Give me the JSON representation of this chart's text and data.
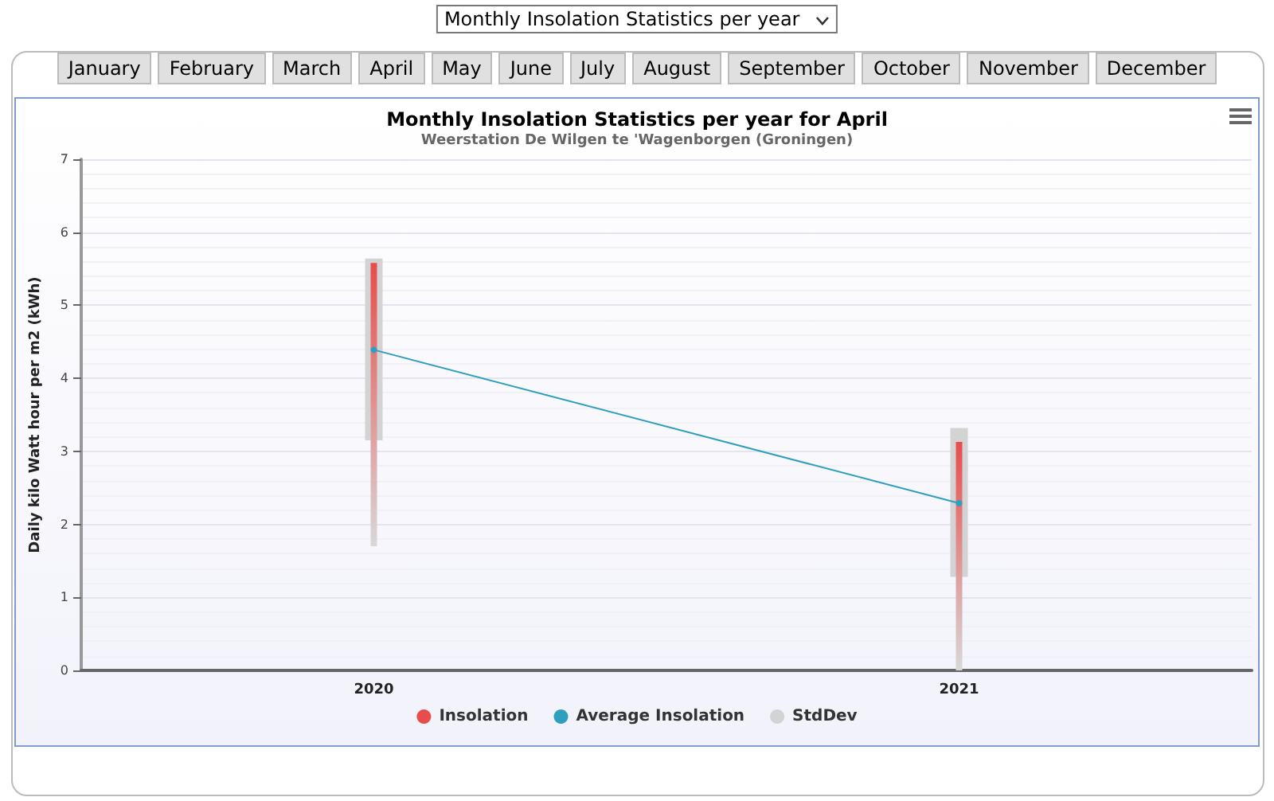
{
  "chart_data": {
    "type": "bar",
    "title": "Monthly Insolation Statistics per year for April",
    "subtitle": "Weerstation De Wilgen te 'Wagenborgen (Groningen)",
    "ylabel": "Daily kilo Watt hour per m2 (kWh)",
    "categories": [
      "2020",
      "2021"
    ],
    "series": [
      {
        "name": "Insolation",
        "color": "#e84c4c",
        "base": [
          1.7,
          0
        ],
        "values": [
          3.88,
          3.13
        ]
      },
      {
        "name": "Average Insolation",
        "type": "line",
        "color": "#2f9fbf",
        "values": [
          4.39,
          2.29
        ]
      },
      {
        "name": "StdDev",
        "color": "#d3d3d3",
        "base": [
          3.15,
          1.28
        ],
        "values": [
          2.49,
          2.04
        ]
      }
    ],
    "ylim": [
      0,
      7
    ],
    "yticks": [
      0,
      1,
      2,
      3,
      4,
      5,
      6,
      7
    ],
    "grid": "y",
    "legend": "bottom",
    "marker": "circle",
    "annotations": [
      "Monthly Insolation Statistics per year",
      "January",
      "February",
      "March",
      "April",
      "May",
      "June",
      "July",
      "August",
      "September",
      "October",
      "November",
      "December"
    ]
  }
}
